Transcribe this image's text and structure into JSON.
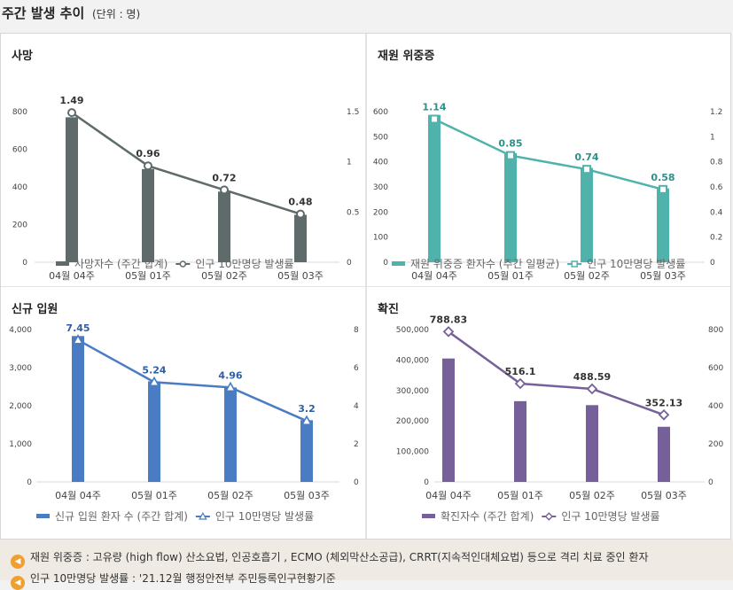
{
  "header": {
    "title": "주간 발생 추이",
    "unit": "(단위 : 명)"
  },
  "chart_data": [
    {
      "type": "bar+line",
      "title": "사망",
      "categories": [
        "04월 04주",
        "05월 01주",
        "05월 02주",
        "05월 03주"
      ],
      "bar_series": {
        "name": "사망자수 (주간 합계)",
        "values": [
          770,
          495,
          375,
          252
        ]
      },
      "line_series": {
        "name": "인구 10만명당 발생률",
        "values": [
          1.49,
          0.96,
          0.72,
          0.48
        ],
        "labels": [
          "1.49",
          "0.96",
          "0.72",
          "0.48"
        ]
      },
      "left_axis": {
        "min": 0,
        "max": 800,
        "ticks": [
          "0",
          "200",
          "400",
          "600",
          "800"
        ]
      },
      "right_axis": {
        "min": 0,
        "max": 1.5,
        "ticks": [
          "0",
          "0.5",
          "1",
          "1.5"
        ]
      },
      "bar_color": "#5f6b6b",
      "line_color": "#5f6b6b",
      "label_color": "#333333",
      "marker": "circle"
    },
    {
      "type": "bar+line",
      "title": "재원 위중증",
      "categories": [
        "04월 04주",
        "05월 01주",
        "05월 02주",
        "05월 03주"
      ],
      "bar_series": {
        "name": "재원 위중증 환자수 (주간 일평균)",
        "values": [
          587,
          435,
          376,
          294
        ]
      },
      "line_series": {
        "name": "인구 10만명당 발생률",
        "values": [
          1.14,
          0.85,
          0.74,
          0.58
        ],
        "labels": [
          "1.14",
          "0.85",
          "0.74",
          "0.58"
        ]
      },
      "left_axis": {
        "min": 0,
        "max": 600,
        "ticks": [
          "0",
          "100",
          "200",
          "300",
          "400",
          "500",
          "600"
        ]
      },
      "right_axis": {
        "min": 0,
        "max": 1.2,
        "ticks": [
          "0",
          "0.2",
          "0.4",
          "0.6",
          "0.8",
          "1",
          "1.2"
        ]
      },
      "bar_color": "#4fb3ab",
      "line_color": "#4fb3ab",
      "label_color": "#2f8f89",
      "marker": "square"
    },
    {
      "type": "bar+line",
      "title": "신규 입원",
      "categories": [
        "04월 04주",
        "05월 01주",
        "05월 02주",
        "05월 03주"
      ],
      "bar_series": {
        "name": "신규 입원 환자 수 (주간 합계)",
        "values": [
          3830,
          2640,
          2480,
          1620
        ]
      },
      "line_series": {
        "name": "인구 10만명당 발생률",
        "values": [
          7.45,
          5.24,
          4.96,
          3.2
        ],
        "labels": [
          "7.45",
          "5.24",
          "4.96",
          "3.2"
        ]
      },
      "left_axis": {
        "min": 0,
        "max": 4000,
        "ticks": [
          "0",
          "1,000",
          "2,000",
          "3,000",
          "4,000"
        ]
      },
      "right_axis": {
        "min": 0,
        "max": 8,
        "ticks": [
          "0",
          "2",
          "4",
          "6",
          "8"
        ]
      },
      "bar_color": "#4a7cc4",
      "line_color": "#4a7cc4",
      "label_color": "#2f5ea8",
      "marker": "triangle"
    },
    {
      "type": "bar+line",
      "title": "확진",
      "categories": [
        "04월 04주",
        "05월 01주",
        "05월 02주",
        "05월 03주"
      ],
      "bar_series": {
        "name": "확진자수 (주간 합계)",
        "values": [
          405000,
          265000,
          252000,
          181000
        ]
      },
      "line_series": {
        "name": "인구 10만명당 발생률",
        "values": [
          788.83,
          516.1,
          488.59,
          352.13
        ],
        "labels": [
          "788.83",
          "516.1",
          "488.59",
          "352.13"
        ]
      },
      "left_axis": {
        "min": 0,
        "max": 500000,
        "ticks": [
          "0",
          "100,000",
          "200,000",
          "300,000",
          "400,000",
          "500,000"
        ]
      },
      "right_axis": {
        "min": 0,
        "max": 800,
        "ticks": [
          "0",
          "200",
          "400",
          "600",
          "800"
        ]
      },
      "bar_color": "#76609a",
      "line_color": "#76609a",
      "label_color": "#333333",
      "marker": "diamond"
    }
  ],
  "footer": {
    "notes": [
      "재원 위중증 : 고유량 (high flow) 산소요법, 인공호흡기 , ECMO (체외막산소공급), CRRT(지속적인대체요법) 등으로 격리 치료 중인 환자",
      "인구 10만명당 발생률 : '21.12월 행정안전부 주민등록인구현황기준"
    ]
  }
}
